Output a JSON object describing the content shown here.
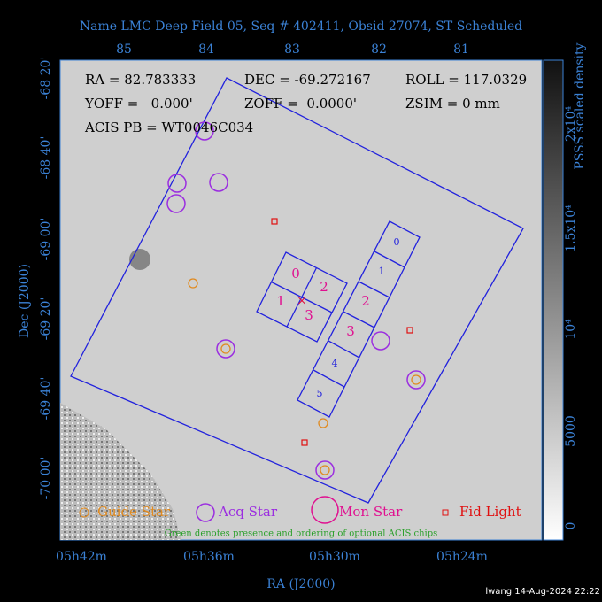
{
  "title": "Name LMC Deep Field 05, Seq # 402411, Obsid 27074, ST Scheduled",
  "header": {
    "ra": "RA = 82.783333",
    "dec": "DEC = -69.272167",
    "roll": "ROLL = 117.0329",
    "yoff": "YOFF =   0.000'",
    "zoff": "ZOFF =  0.0000'",
    "zsim": "ZSIM = 0 mm",
    "acis": "ACIS PB = WT0046C034"
  },
  "top_axis": [
    "85",
    "84",
    "83",
    "82",
    "81"
  ],
  "left_axis": [
    "-68 20'",
    "-68 40'",
    "-69 00'",
    "-69 20'",
    "-69 40'",
    "-70 00'"
  ],
  "bottom_axis": [
    "05h42m",
    "05h36m",
    "05h30m",
    "05h24m"
  ],
  "x_label": "RA (J2000)",
  "y_label": "Dec (J2000)",
  "colorbar": {
    "title": "PSSS scaled density",
    "labels": [
      "2x10⁴",
      "1.5x10⁴",
      "10⁴",
      "5000",
      "0"
    ]
  },
  "i_chips": [
    "0",
    "1",
    "2",
    "3"
  ],
  "s_chips": [
    "0",
    "1",
    "2",
    "3",
    "4",
    "5"
  ],
  "legend": {
    "guide": "Guide Star",
    "acq": "Acq Star",
    "mon": "Mon Star",
    "fid": "Fid Light"
  },
  "note": "Green denotes presence and ordering of optional ACIS chips",
  "footer": "lwang 14-Aug-2024 22:22"
}
